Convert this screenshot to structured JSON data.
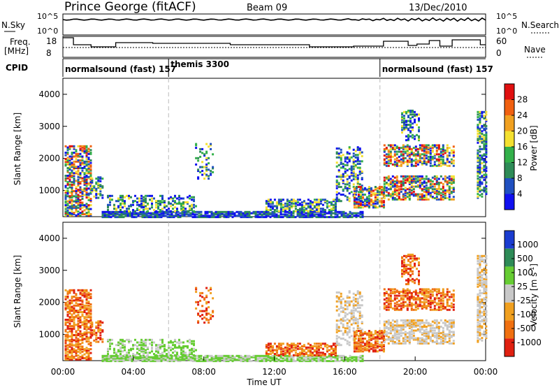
{
  "header": {
    "station": "Prince George (fitACF)",
    "beam": "Beam 09",
    "date": "13/Dec/2010"
  },
  "noise_panel": {
    "left_label": "N.Sky",
    "left_ticks": [
      "10^5",
      "10^0"
    ],
    "right_ticks": [
      "10^5",
      "10^0"
    ],
    "right_label": "N.Search"
  },
  "freq_panel": {
    "left_label_1": "Freq.",
    "left_label_2": "[MHz]",
    "left_ticks": [
      "18",
      "8"
    ],
    "right_ticks": [
      "60",
      "0"
    ],
    "right_label": "Nave"
  },
  "cpid": {
    "label": "CPID",
    "segments": [
      {
        "name": "normalsound (fast) 157",
        "start_hour": 0
      },
      {
        "name": "themis 3300",
        "start_hour": 6
      },
      {
        "name": "normalsound (fast) 157",
        "start_hour": 18
      }
    ]
  },
  "chart_data": [
    {
      "type": "heatmap",
      "title": "",
      "ylabel": "Slant Range [km]",
      "xlabel": "",
      "ylim": [
        180,
        4500
      ],
      "yticks": [
        "1000",
        "2000",
        "3000",
        "4000"
      ],
      "colorbar_label": "Power [dB]",
      "colorbar_ticks": [
        "4",
        "8",
        "12",
        "16",
        "20",
        "24",
        "28"
      ],
      "colors": [
        "#1010f0",
        "#2050c0",
        "#2e8b57",
        "#33b04a",
        "#f4e030",
        "#f0a020",
        "#f06010",
        "#e01010"
      ]
    },
    {
      "type": "heatmap",
      "title": "",
      "ylabel": "Slant Range [km]",
      "xlabel": "Time UT",
      "ylim": [
        180,
        4500
      ],
      "yticks": [
        "1000",
        "2000",
        "3000",
        "4000"
      ],
      "colorbar_label": "Velocity [m s^-1]",
      "colorbar_ticks": [
        "1000",
        "500",
        "100",
        "25",
        "-25",
        "-100",
        "-500",
        "-1000"
      ],
      "colors": [
        "#1a3cd0",
        "#2e8b57",
        "#66cc33",
        "#c8c8c8",
        "#f0a020",
        "#f07010",
        "#e02010"
      ],
      "xticks": [
        "00:00",
        "04:00",
        "08:00",
        "12:00",
        "16:00",
        "20:00",
        "00:00"
      ],
      "xlim_hours": [
        0,
        24
      ]
    }
  ],
  "axis": {
    "time_label": "Time UT",
    "x_ticks": [
      "00:00",
      "04:00",
      "08:00",
      "12:00",
      "16:00",
      "20:00",
      "00:00"
    ]
  }
}
